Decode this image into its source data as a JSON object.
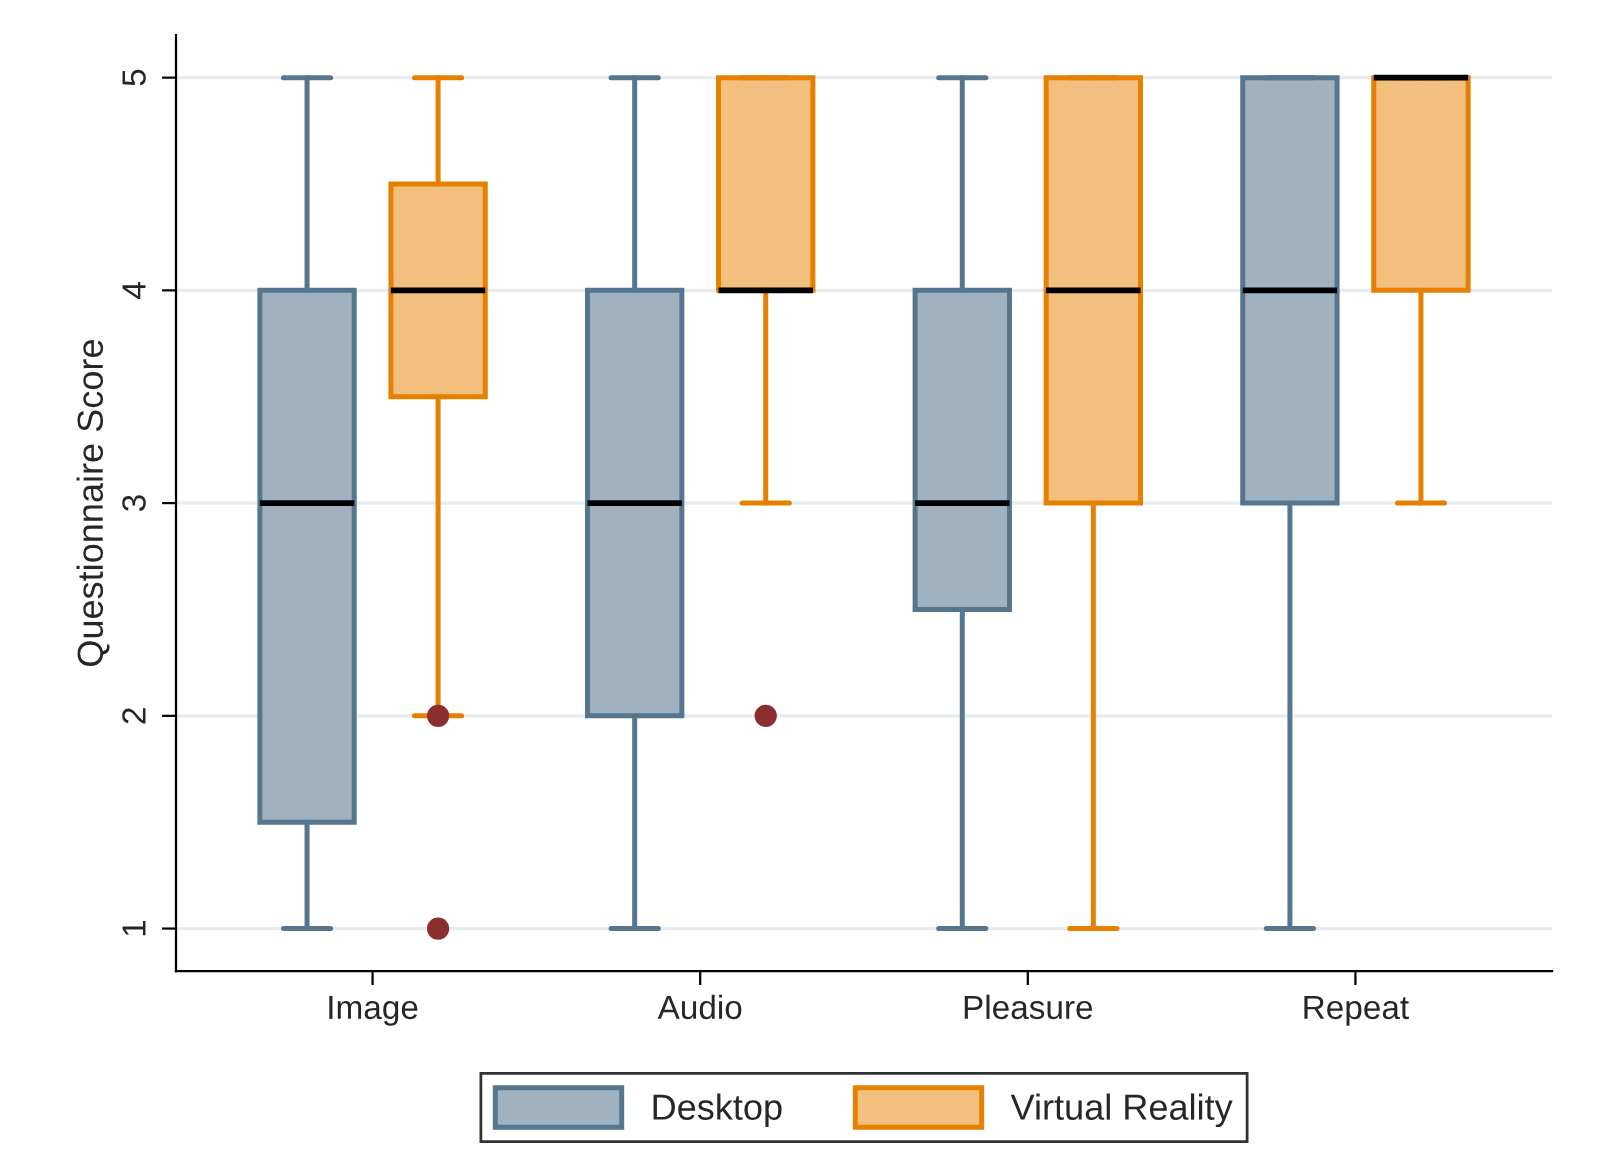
{
  "chart_data": {
    "type": "box",
    "ylabel": "Questionnaire Score",
    "categories": [
      "Image",
      "Audio",
      "Pleasure",
      "Repeat"
    ],
    "ylim": [
      0.8,
      5.2
    ],
    "yticks": [
      1,
      2,
      3,
      4,
      5
    ],
    "grid": "y",
    "legend": "bottom",
    "series": [
      {
        "name": "Desktop",
        "color": "#a0b1bf",
        "boxes": [
          {
            "low": 1,
            "q1": 1.5,
            "median": 3,
            "q3": 4,
            "high": 5
          },
          {
            "low": 1,
            "q1": 2,
            "median": 3,
            "q3": 4,
            "high": 5
          },
          {
            "low": 1,
            "q1": 2.5,
            "median": 3,
            "q3": 4,
            "high": 5
          },
          {
            "low": 1,
            "q1": 3,
            "median": 4,
            "q3": 5,
            "high": 5
          }
        ]
      },
      {
        "name": "Virtual Reality",
        "color": "#f2bf7f",
        "boxes": [
          {
            "low": 2,
            "q1": 3.5,
            "median": 4,
            "q3": 4.5,
            "high": 5,
            "outliers": [
              2,
              1
            ]
          },
          {
            "low": 3,
            "q1": 4,
            "median": 4,
            "q3": 5,
            "high": 5,
            "outliers": [
              2
            ]
          },
          {
            "low": 1,
            "q1": 3,
            "median": 4,
            "q3": 5,
            "high": 5
          },
          {
            "low": 3,
            "q1": 4,
            "median": 5,
            "q3": 5,
            "high": 5
          }
        ]
      }
    ]
  }
}
